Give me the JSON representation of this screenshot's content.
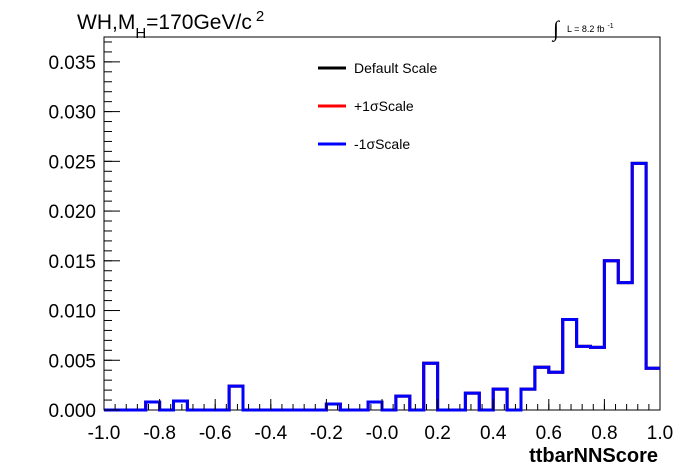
{
  "chart_data": {
    "type": "step-histogram",
    "title": {
      "main": "WH,M",
      "subscript": "H",
      "rest": "=170GeV/c",
      "superscript": "2"
    },
    "lumi": {
      "integral_sign": "∫",
      "text": "L = 8.2 fb",
      "superscript": "-1"
    },
    "xlabel": "ttbarNNScore",
    "ylabel": "",
    "xlim": [
      -1.0,
      1.0
    ],
    "ylim": [
      0.0,
      0.0375
    ],
    "grid": false,
    "legend_position": "top-center",
    "x_ticks": [
      "-1.0",
      "-0.8",
      "-0.6",
      "-0.4",
      "-0.2",
      "-0.0",
      "0.2",
      "0.4",
      "0.6",
      "0.8",
      "1.0"
    ],
    "x_tick_values": [
      -1.0,
      -0.8,
      -0.6,
      -0.4,
      -0.2,
      0.0,
      0.2,
      0.4,
      0.6,
      0.8,
      1.0
    ],
    "y_ticks": [
      "0.000",
      "0.005",
      "0.010",
      "0.015",
      "0.020",
      "0.025",
      "0.030",
      "0.035"
    ],
    "y_tick_values": [
      0.0,
      0.005,
      0.01,
      0.015,
      0.02,
      0.025,
      0.03,
      0.035
    ],
    "bin_edges": [
      -1.0,
      -0.95,
      -0.9,
      -0.85,
      -0.8,
      -0.75,
      -0.7,
      -0.65,
      -0.6,
      -0.55,
      -0.5,
      -0.45,
      -0.4,
      -0.35,
      -0.3,
      -0.25,
      -0.2,
      -0.15,
      -0.1,
      -0.05,
      0.0,
      0.05,
      0.1,
      0.15,
      0.2,
      0.25,
      0.3,
      0.35,
      0.4,
      0.45,
      0.5,
      0.55,
      0.6,
      0.65,
      0.7,
      0.75,
      0.8,
      0.85,
      0.9,
      0.95,
      1.0
    ],
    "series": [
      {
        "name": "Default Scale",
        "color": "#000000",
        "values": [
          0,
          0,
          0,
          0.0008,
          0,
          0.0009,
          0,
          0,
          0,
          0.0024,
          0,
          0,
          0,
          0,
          0,
          0,
          0.0006,
          0,
          0,
          0.0008,
          0,
          0.0014,
          0,
          0.0047,
          0,
          0,
          0.0017,
          0,
          0.0021,
          0,
          0.0021,
          0.0043,
          0.0038,
          0.0091,
          0.0064,
          0.0063,
          0.015,
          0.0128,
          0.0248,
          0.0042
        ]
      },
      {
        "name": "+1σScale",
        "color": "#ff0000",
        "values": [
          0,
          0,
          0,
          0.0008,
          0,
          0.0009,
          0,
          0,
          0,
          0.0024,
          0,
          0,
          0,
          0,
          0,
          0,
          0.0006,
          0,
          0,
          0.0008,
          0,
          0.0014,
          0,
          0.0047,
          0,
          0,
          0.0017,
          0,
          0.0021,
          0,
          0.0021,
          0.0043,
          0.0038,
          0.0091,
          0.0064,
          0.0063,
          0.015,
          0.0128,
          0.0248,
          0.0042
        ]
      },
      {
        "name": "-1σScale",
        "color": "#0000ff",
        "values": [
          0,
          0,
          0,
          0.0008,
          0,
          0.0009,
          0,
          0,
          0,
          0.0024,
          0,
          0,
          0,
          0,
          0,
          0,
          0.0006,
          0,
          0,
          0.0008,
          0,
          0.0014,
          0,
          0.0047,
          0,
          0,
          0.0017,
          0,
          0.0021,
          0,
          0.0021,
          0.0043,
          0.0038,
          0.0091,
          0.0064,
          0.0063,
          0.015,
          0.0128,
          0.0248,
          0.0042
        ]
      }
    ]
  }
}
